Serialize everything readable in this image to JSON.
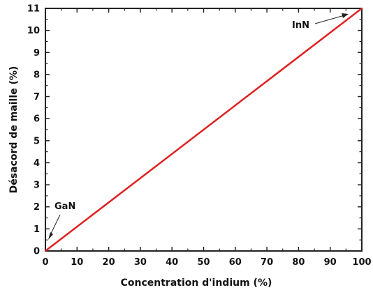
{
  "chart_data": {
    "type": "line",
    "xlabel": "Concentration d'indium (%)",
    "ylabel": "Désacord de maille (%)",
    "xlim": [
      0,
      100
    ],
    "ylim": [
      0,
      11
    ],
    "x_ticks": [
      0,
      10,
      20,
      30,
      40,
      50,
      60,
      70,
      80,
      90,
      100
    ],
    "y_ticks": [
      0,
      1,
      2,
      3,
      4,
      5,
      6,
      7,
      8,
      9,
      10,
      11
    ],
    "grid": false,
    "series": [
      {
        "x": [
          0,
          100
        ],
        "y": [
          0,
          11
        ],
        "color": "#e02020"
      }
    ],
    "annotations": [
      {
        "text": "GaN",
        "x": 0,
        "y": 0
      },
      {
        "text": "InN",
        "x": 100,
        "y": 11
      }
    ]
  }
}
